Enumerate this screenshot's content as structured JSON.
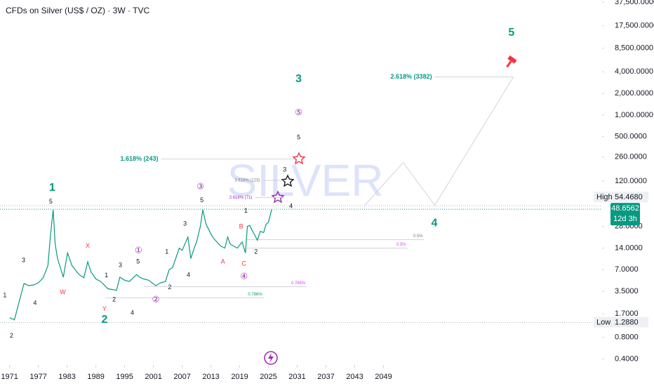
{
  "chart_data": {
    "type": "line",
    "title": "CFDs on Silver (US$ / OZ) · 3W · TVC",
    "watermark": "SILVER",
    "log_scale": true,
    "color": "#089981",
    "x": [
      1971,
      1972,
      1973,
      1974,
      1975,
      1976,
      1977,
      1978,
      1979,
      1979.5,
      1980.1,
      1980.5,
      1981,
      1982.2,
      1983.1,
      1984,
      1985.5,
      1986.5,
      1987.3,
      1988,
      1989,
      1990,
      1991.5,
      1992.5,
      1993.3,
      1994,
      1995,
      1996,
      1997.5,
      1998.1,
      1999,
      2000,
      2001.5,
      2002.5,
      2003.5,
      2004.3,
      2005,
      2006.4,
      2007,
      2008.2,
      2008.8,
      2009.5,
      2010,
      2010.8,
      2011.3,
      2012,
      2013,
      2013.6,
      2015,
      2015.9,
      2016.5,
      2017,
      2018.5,
      2019.5,
      2020.2,
      2020.6,
      2021.1,
      2022,
      2022.7,
      2023.3,
      2024,
      2024.5,
      2025,
      2025.7
    ],
    "values": [
      1.5,
      1.4,
      2.5,
      4.5,
      4.2,
      4.3,
      4.6,
      5.4,
      8,
      20,
      48,
      16,
      10,
      5.5,
      12,
      8,
      6,
      5.4,
      9,
      6.5,
      5.2,
      4.8,
      3.8,
      3.7,
      3.6,
      5.5,
      5,
      4.8,
      6,
      5.5,
      5.2,
      5,
      4.2,
      4.6,
      4.8,
      7,
      7.5,
      14,
      13,
      20,
      10,
      14,
      17,
      28,
      48,
      30,
      22,
      19,
      15,
      14,
      20,
      16,
      14,
      17,
      12,
      28,
      29,
      22,
      18,
      24,
      23,
      30,
      32,
      48.6562
    ],
    "xlim": [
      1969,
      2094.6
    ],
    "xticks": [
      1971,
      1977,
      1983,
      1989,
      1995,
      2001,
      2007,
      2013,
      2019,
      2025,
      2031,
      2037,
      2043,
      2049
    ],
    "ylim": [
      0.33,
      40000
    ],
    "yticks": [
      {
        "value": 37500,
        "label": "37,500.0000"
      },
      {
        "value": 17500,
        "label": "17,500.0000"
      },
      {
        "value": 8500,
        "label": "8,500.0000"
      },
      {
        "value": 4000,
        "label": "4,000.0000"
      },
      {
        "value": 2000,
        "label": "2,000.0000"
      },
      {
        "value": 1000,
        "label": "1,000.0000"
      },
      {
        "value": 500,
        "label": "500.0000"
      },
      {
        "value": 260,
        "label": "260.0000"
      },
      {
        "value": 120,
        "label": "120.0000"
      },
      {
        "value": 28,
        "label": "28.0000"
      },
      {
        "value": 14,
        "label": "14.0000"
      },
      {
        "value": 7,
        "label": "7.0000"
      },
      {
        "value": 3.5,
        "label": "3.5000"
      },
      {
        "value": 1.7,
        "label": "1.7000"
      },
      {
        "value": 0.8,
        "label": "0.8000"
      },
      {
        "value": 0.4,
        "label": "0.4000"
      }
    ],
    "high": {
      "label": "High",
      "value": 54.468,
      "value_label": "54.4680"
    },
    "low": {
      "label": "Low",
      "value": 1.288,
      "value_label": "1.2880"
    },
    "last": {
      "value": 48.6562,
      "value_label": "48.6562",
      "countdown": "12d 3h"
    },
    "levels": [
      {
        "label": "1.618% (243)",
        "value": 243,
        "x": [
          2002.6,
          2030.4
        ],
        "color": "#089981",
        "label_side": "left"
      },
      {
        "label": "2.618% (3382)",
        "value": 3382,
        "x": [
          2059.7,
          2076.1
        ],
        "color": "#089981",
        "label_side": "left"
      },
      {
        "label": "3.618% (123)",
        "value": 123,
        "x": [
          2023.8,
          2028.5
        ],
        "color": "#787b86",
        "label_side": "left"
      },
      {
        "label": "2.618% (71)",
        "value": 71,
        "x": [
          2022.2,
          2028.2
        ],
        "color": "#9c27b0",
        "label_side": "left"
      },
      {
        "label": "0.5%",
        "value": 18.3,
        "x": [
          2020.2,
          2057.5
        ],
        "color": "#787b86",
        "label_side": "right"
      },
      {
        "label": "0.5%",
        "value": 14,
        "x": [
          2020.2,
          2054
        ],
        "color": "#e040fb",
        "label_side": "right"
      },
      {
        "label": "0.786%",
        "value": 4.05,
        "x": [
          1999,
          2033
        ],
        "color": "#e040fb",
        "label_side": "right"
      },
      {
        "label": "0.786%",
        "value": 2.85,
        "x": [
          1991,
          2024
        ],
        "color": "#089981",
        "label_side": "right"
      }
    ],
    "projection": {
      "x": [
        2045.1,
        2053.1,
        2059.7,
        2076.1
      ],
      "y": [
        55.3,
        218,
        55.3,
        3382
      ]
    },
    "annotations": [
      {
        "text": "5",
        "x": 2075.7,
        "y": 14000,
        "color": "#089981",
        "style": "major"
      },
      {
        "text": "3",
        "x": 2031.3,
        "y": 3172,
        "color": "#089981",
        "style": "major"
      },
      {
        "text": "1",
        "x": 1979.9,
        "y": 96,
        "color": "#089981",
        "style": "major"
      },
      {
        "text": "2",
        "x": 1990.8,
        "y": 1.4,
        "color": "#089981",
        "style": "major"
      },
      {
        "text": "4",
        "x": 2059.6,
        "y": 31,
        "color": "#089981",
        "style": "major"
      },
      {
        "text": "5",
        "x": 2031.3,
        "y": 483,
        "color": "#131722",
        "style": "minor"
      },
      {
        "text": "3",
        "x": 2028.4,
        "y": 171,
        "color": "#131722",
        "style": "minor"
      },
      {
        "text": "5",
        "x": 1979.6,
        "y": 61.7,
        "color": "#131722",
        "style": "minor"
      },
      {
        "text": "3",
        "x": 1973.9,
        "y": 9.4,
        "color": "#131722",
        "style": "minor"
      },
      {
        "text": "4",
        "x": 1976.3,
        "y": 2.38,
        "color": "#131722",
        "style": "minor"
      },
      {
        "text": "1",
        "x": 1970,
        "y": 3.05,
        "color": "#131722",
        "style": "minor"
      },
      {
        "text": "2",
        "x": 1971.4,
        "y": 0.84,
        "color": "#131722",
        "style": "minor"
      },
      {
        "text": "W",
        "x": 1982.1,
        "y": 3.4,
        "color": "#f23645",
        "style": "minor"
      },
      {
        "text": "X",
        "x": 1987.3,
        "y": 15,
        "color": "#f23645",
        "style": "minor"
      },
      {
        "text": "Y",
        "x": 1990.8,
        "y": 1.98,
        "color": "#f23645",
        "style": "minor"
      },
      {
        "text": "1",
        "x": 1991.2,
        "y": 5.8,
        "color": "#131722",
        "style": "minor"
      },
      {
        "text": "2",
        "x": 1992.8,
        "y": 2.66,
        "color": "#131722",
        "style": "minor"
      },
      {
        "text": "3",
        "x": 1994.1,
        "y": 8.05,
        "color": "#131722",
        "style": "minor"
      },
      {
        "text": "4",
        "x": 1996.6,
        "y": 1.74,
        "color": "#131722",
        "style": "minor"
      },
      {
        "text": "5",
        "x": 1997.8,
        "y": 9,
        "color": "#131722",
        "style": "minor"
      },
      {
        "text": "①",
        "x": 1997.9,
        "y": 12.8,
        "color": "#9c27b0",
        "style": "circled"
      },
      {
        "text": "②",
        "x": 2001.5,
        "y": 2.66,
        "color": "#9c27b0",
        "style": "circled"
      },
      {
        "text": "2",
        "x": 2004.4,
        "y": 3.97,
        "color": "#131722",
        "style": "minor"
      },
      {
        "text": "1",
        "x": 2003.8,
        "y": 12.3,
        "color": "#131722",
        "style": "minor"
      },
      {
        "text": "3",
        "x": 2007.6,
        "y": 30.4,
        "color": "#131722",
        "style": "minor"
      },
      {
        "text": "4",
        "x": 2008.3,
        "y": 5.85,
        "color": "#131722",
        "style": "minor"
      },
      {
        "text": "5",
        "x": 2011.1,
        "y": 64.6,
        "color": "#131722",
        "style": "minor"
      },
      {
        "text": "③",
        "x": 2010.8,
        "y": 100,
        "color": "#9c27b0",
        "style": "circled"
      },
      {
        "text": "A",
        "x": 2015.5,
        "y": 9,
        "color": "#f23645",
        "style": "minor"
      },
      {
        "text": "B",
        "x": 2019.3,
        "y": 27.7,
        "color": "#f23645",
        "style": "minor"
      },
      {
        "text": "C",
        "x": 2019.9,
        "y": 8.4,
        "color": "#f23645",
        "style": "minor"
      },
      {
        "text": "④",
        "x": 2019.9,
        "y": 5.6,
        "color": "#9c27b0",
        "style": "circled"
      },
      {
        "text": "1",
        "x": 2020.3,
        "y": 46,
        "color": "#131722",
        "style": "minor"
      },
      {
        "text": "2",
        "x": 2022.4,
        "y": 12.3,
        "color": "#131722",
        "style": "minor"
      },
      {
        "text": "4",
        "x": 2029.7,
        "y": 53.4,
        "color": "#131722",
        "style": "minor"
      },
      {
        "text": "⑤",
        "x": 2031.3,
        "y": 1071,
        "color": "#9c27b0",
        "style": "circled"
      }
    ]
  }
}
